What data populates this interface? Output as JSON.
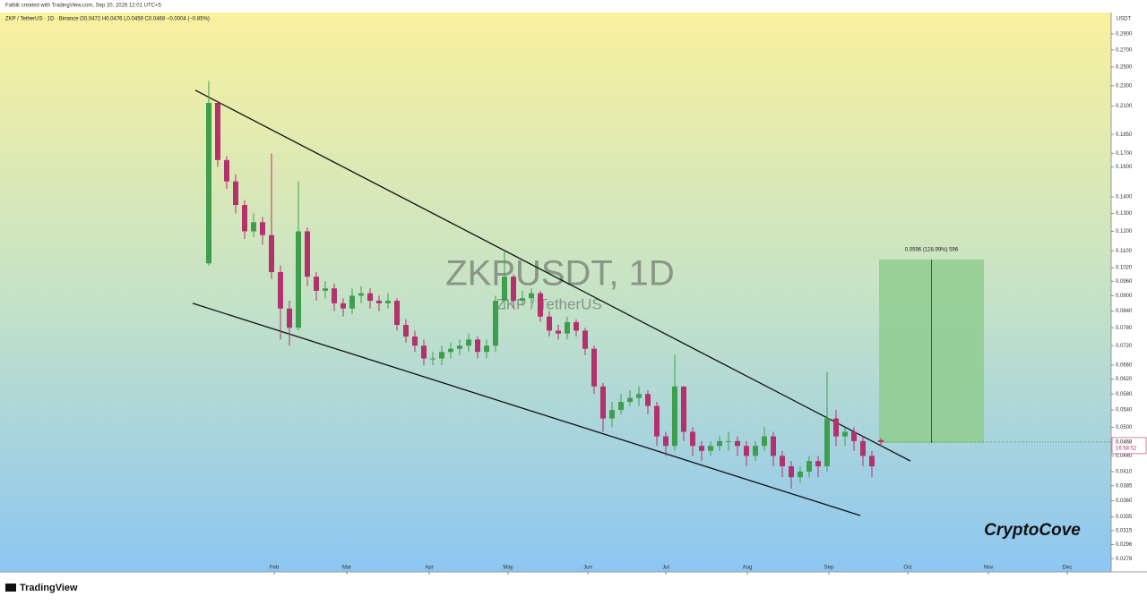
{
  "header": {
    "credit": "Falbik created with TradingView.com, Sep 20, 2026 12:01 UTC+5"
  },
  "footer": {
    "brand": "TradingView"
  },
  "chart_data": {
    "type": "candlestick",
    "legend": "ZKP / TetherUS · 1D · Binance  O0.0472  H0.0476  L0.0459  C0.0468  −0.0004 (−0.85%)",
    "watermark": "ZKPUSDT, 1D",
    "watermark_sub": "ZKP / TetherUS",
    "signature": "CryptoCove",
    "y_unit": "USDT",
    "log_scale": true,
    "up_color": "#3f9d4e",
    "down_color": "#b3316c",
    "open": [
      0.104,
      0.213,
      0.165,
      0.15,
      0.135,
      0.12,
      0.125,
      0.118,
      0.1,
      0.085,
      0.078,
      0.12,
      0.098,
      0.092,
      0.093,
      0.087,
      0.085,
      0.09,
      0.091,
      0.088,
      0.087,
      0.088,
      0.079,
      0.075,
      0.072,
      0.068,
      0.068,
      0.07,
      0.071,
      0.072,
      0.074,
      0.07,
      0.072,
      0.088,
      0.098,
      0.088,
      0.089,
      0.091,
      0.082,
      0.077,
      0.076,
      0.08,
      0.077,
      0.071,
      0.06,
      0.052,
      0.054,
      0.056,
      0.057,
      0.058,
      0.055,
      0.048,
      0.046,
      0.06,
      0.049,
      0.046,
      0.045,
      0.046,
      0.047,
      0.047,
      0.046,
      0.044,
      0.046,
      0.048,
      0.044,
      0.042,
      0.04,
      0.041,
      0.043,
      0.042,
      0.052,
      0.048,
      0.049,
      0.047,
      0.044,
      0.0472
    ],
    "high": [
      0.235,
      0.215,
      0.168,
      0.155,
      0.138,
      0.13,
      0.128,
      0.17,
      0.103,
      0.088,
      0.15,
      0.122,
      0.1,
      0.096,
      0.095,
      0.089,
      0.093,
      0.094,
      0.093,
      0.09,
      0.091,
      0.089,
      0.081,
      0.077,
      0.074,
      0.07,
      0.072,
      0.073,
      0.074,
      0.076,
      0.075,
      0.074,
      0.09,
      0.11,
      0.099,
      0.092,
      0.093,
      0.092,
      0.084,
      0.079,
      0.082,
      0.081,
      0.078,
      0.072,
      0.061,
      0.056,
      0.058,
      0.059,
      0.06,
      0.059,
      0.056,
      0.049,
      0.069,
      0.06,
      0.05,
      0.047,
      0.047,
      0.048,
      0.049,
      0.048,
      0.047,
      0.047,
      0.05,
      0.049,
      0.045,
      0.043,
      0.042,
      0.044,
      0.044,
      0.064,
      0.054,
      0.05,
      0.05,
      0.048,
      0.045,
      0.0476
    ],
    "low": [
      0.103,
      0.16,
      0.145,
      0.13,
      0.116,
      0.117,
      0.113,
      0.097,
      0.074,
      0.072,
      0.077,
      0.094,
      0.088,
      0.089,
      0.084,
      0.082,
      0.083,
      0.087,
      0.085,
      0.084,
      0.085,
      0.077,
      0.073,
      0.07,
      0.066,
      0.066,
      0.066,
      0.068,
      0.069,
      0.07,
      0.068,
      0.068,
      0.07,
      0.085,
      0.085,
      0.086,
      0.087,
      0.08,
      0.075,
      0.074,
      0.074,
      0.075,
      0.069,
      0.058,
      0.049,
      0.05,
      0.053,
      0.055,
      0.055,
      0.053,
      0.046,
      0.044,
      0.045,
      0.047,
      0.044,
      0.043,
      0.044,
      0.045,
      0.045,
      0.044,
      0.042,
      0.043,
      0.045,
      0.042,
      0.04,
      0.038,
      0.039,
      0.04,
      0.04,
      0.041,
      0.046,
      0.046,
      0.045,
      0.042,
      0.04,
      0.0459
    ],
    "close": [
      0.213,
      0.165,
      0.15,
      0.135,
      0.12,
      0.125,
      0.118,
      0.1,
      0.085,
      0.078,
      0.12,
      0.098,
      0.092,
      0.093,
      0.087,
      0.085,
      0.09,
      0.091,
      0.088,
      0.087,
      0.088,
      0.079,
      0.075,
      0.072,
      0.068,
      0.068,
      0.07,
      0.071,
      0.072,
      0.074,
      0.07,
      0.072,
      0.088,
      0.098,
      0.088,
      0.089,
      0.091,
      0.082,
      0.077,
      0.076,
      0.08,
      0.077,
      0.071,
      0.06,
      0.052,
      0.054,
      0.056,
      0.057,
      0.058,
      0.055,
      0.048,
      0.046,
      0.06,
      0.049,
      0.046,
      0.045,
      0.046,
      0.047,
      0.047,
      0.046,
      0.044,
      0.046,
      0.048,
      0.044,
      0.042,
      0.04,
      0.041,
      0.043,
      0.042,
      0.052,
      0.048,
      0.049,
      0.047,
      0.044,
      0.042,
      0.0468
    ],
    "xlim": [
      -23.3,
      100.7
    ],
    "xticks": [
      {
        "value": 7.3,
        "label": "Feb"
      },
      {
        "value": 15.4,
        "label": "Mar"
      },
      {
        "value": 24.6,
        "label": "Apr"
      },
      {
        "value": 33.4,
        "label": "May"
      },
      {
        "value": 42.3,
        "label": "Jun"
      },
      {
        "value": 51,
        "label": "Jul"
      },
      {
        "value": 60.1,
        "label": "Aug"
      },
      {
        "value": 69.2,
        "label": "Sep"
      },
      {
        "value": 78,
        "label": "Oct"
      },
      {
        "value": 87,
        "label": "Nov"
      },
      {
        "value": 95.8,
        "label": "Dec"
      }
    ],
    "ylim": [
      0.0262,
      0.319
    ],
    "yticks": [
      {
        "value": 0.29,
        "label": "0.2900"
      },
      {
        "value": 0.27,
        "label": "0.2700"
      },
      {
        "value": 0.25,
        "label": "0.2500"
      },
      {
        "value": 0.23,
        "label": "0.2300"
      },
      {
        "value": 0.21,
        "label": "0.2100"
      },
      {
        "value": 0.185,
        "label": "0.1850"
      },
      {
        "value": 0.17,
        "label": "0.1700"
      },
      {
        "value": 0.16,
        "label": "0.1600"
      },
      {
        "value": 0.14,
        "label": "0.1400"
      },
      {
        "value": 0.13,
        "label": "0.1300"
      },
      {
        "value": 0.12,
        "label": "0.1200"
      },
      {
        "value": 0.11,
        "label": "0.1100"
      },
      {
        "value": 0.102,
        "label": "0.1020"
      },
      {
        "value": 0.096,
        "label": "0.0960"
      },
      {
        "value": 0.09,
        "label": "0.0900"
      },
      {
        "value": 0.084,
        "label": "0.0840"
      },
      {
        "value": 0.078,
        "label": "0.0780"
      },
      {
        "value": 0.072,
        "label": "0.0720"
      },
      {
        "value": 0.066,
        "label": "0.0660"
      },
      {
        "value": 0.062,
        "label": "0.0620"
      },
      {
        "value": 0.058,
        "label": "0.0580"
      },
      {
        "value": 0.054,
        "label": "0.0540"
      },
      {
        "value": 0.05,
        "label": "0.0500"
      },
      {
        "value": 0.044,
        "label": "0.0440"
      },
      {
        "value": 0.041,
        "label": "0.0410"
      },
      {
        "value": 0.0385,
        "label": "0.0385"
      },
      {
        "value": 0.036,
        "label": "0.0360"
      },
      {
        "value": 0.0335,
        "label": "0.0335"
      },
      {
        "value": 0.0315,
        "label": "0.0315"
      },
      {
        "value": 0.0296,
        "label": "0.0296"
      },
      {
        "value": 0.0278,
        "label": "0.0278"
      }
    ],
    "last_price": {
      "value": 0.0468,
      "label": "0.0468"
    },
    "countdown": "16:58:52",
    "trendlines": [
      {
        "x": [
          -1.5,
          78.3
        ],
        "y": [
          0.2254,
          0.043
        ]
      },
      {
        "x": [
          -1.8,
          72.7
        ],
        "y": [
          0.087,
          0.0337
        ]
      }
    ],
    "target_zone": {
      "x": [
        74.8,
        86.5
      ],
      "y": [
        0.0466,
        0.1058
      ],
      "label": "0.0596 (128.99%) 596",
      "color": "#8fcc8f"
    }
  }
}
